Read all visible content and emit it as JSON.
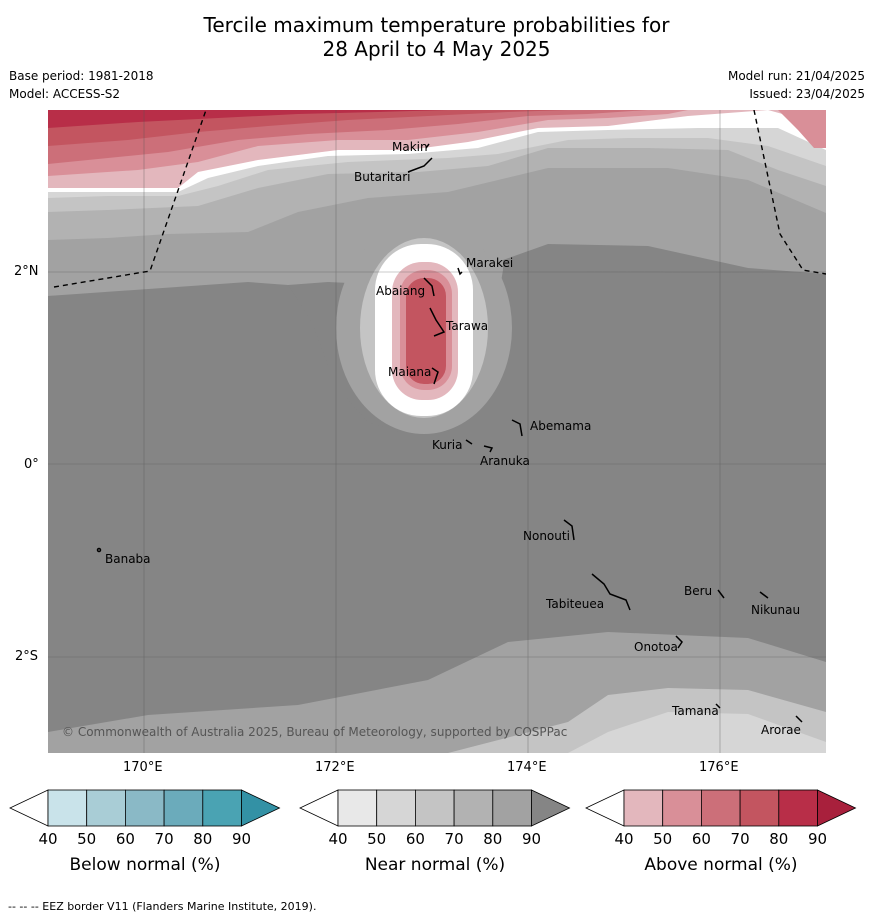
{
  "title_line1": "Tercile maximum temperature probabilities for",
  "title_line2": "28 April to 4 May 2025",
  "base_period": "Base period: 1981-2018",
  "model": "Model: ACCESS-S2",
  "model_run": "Model run: 21/04/2025",
  "issued": "Issued: 23/04/2025",
  "lat_labels": [
    "2°N",
    "0°",
    "2°S"
  ],
  "lon_labels": [
    "170°E",
    "172°E",
    "174°E",
    "176°E"
  ],
  "places": {
    "makin": "Makin",
    "butaritari": "Butaritari",
    "marakei": "Marakei",
    "abaiang": "Abaiang",
    "tarawa": "Tarawa",
    "maiana": "Maiana",
    "abemama": "Abemama",
    "kuria": "Kuria",
    "aranuka": "Aranuka",
    "nonouti": "Nonouti",
    "banaba": "Banaba",
    "tabiteuea": "Tabiteuea",
    "beru": "Beru",
    "nikunau": "Nikunau",
    "onotoa": "Onotoa",
    "tamana": "Tamana",
    "arorae": "Arorae"
  },
  "copyright": "© Commonwealth of Australia 2025, Bureau of Meteorology, supported by COSPPac",
  "colorbars": [
    {
      "label": "Below normal (%)",
      "ticks": [
        "40",
        "50",
        "60",
        "70",
        "80",
        "90"
      ],
      "colors": [
        "#ffffff",
        "#c9e3ea",
        "#a9cdd6",
        "#8ab9c6",
        "#6babbb",
        "#4aa3b3",
        "#3391a5"
      ]
    },
    {
      "label": "Near normal (%)",
      "ticks": [
        "40",
        "50",
        "60",
        "70",
        "80",
        "90"
      ],
      "colors": [
        "#ffffff",
        "#e8e8e8",
        "#d6d6d6",
        "#c4c4c4",
        "#b2b2b2",
        "#a2a2a2",
        "#858585"
      ]
    },
    {
      "label": "Above normal (%)",
      "ticks": [
        "40",
        "50",
        "60",
        "70",
        "80",
        "90"
      ],
      "colors": [
        "#ffffff",
        "#e3b7bd",
        "#d98f98",
        "#cc6f79",
        "#c35560",
        "#b82e48",
        "#a8203c"
      ]
    }
  ],
  "footer": "--  --  -- EEZ border V11 (Flanders Marine Institute, 2019)."
}
